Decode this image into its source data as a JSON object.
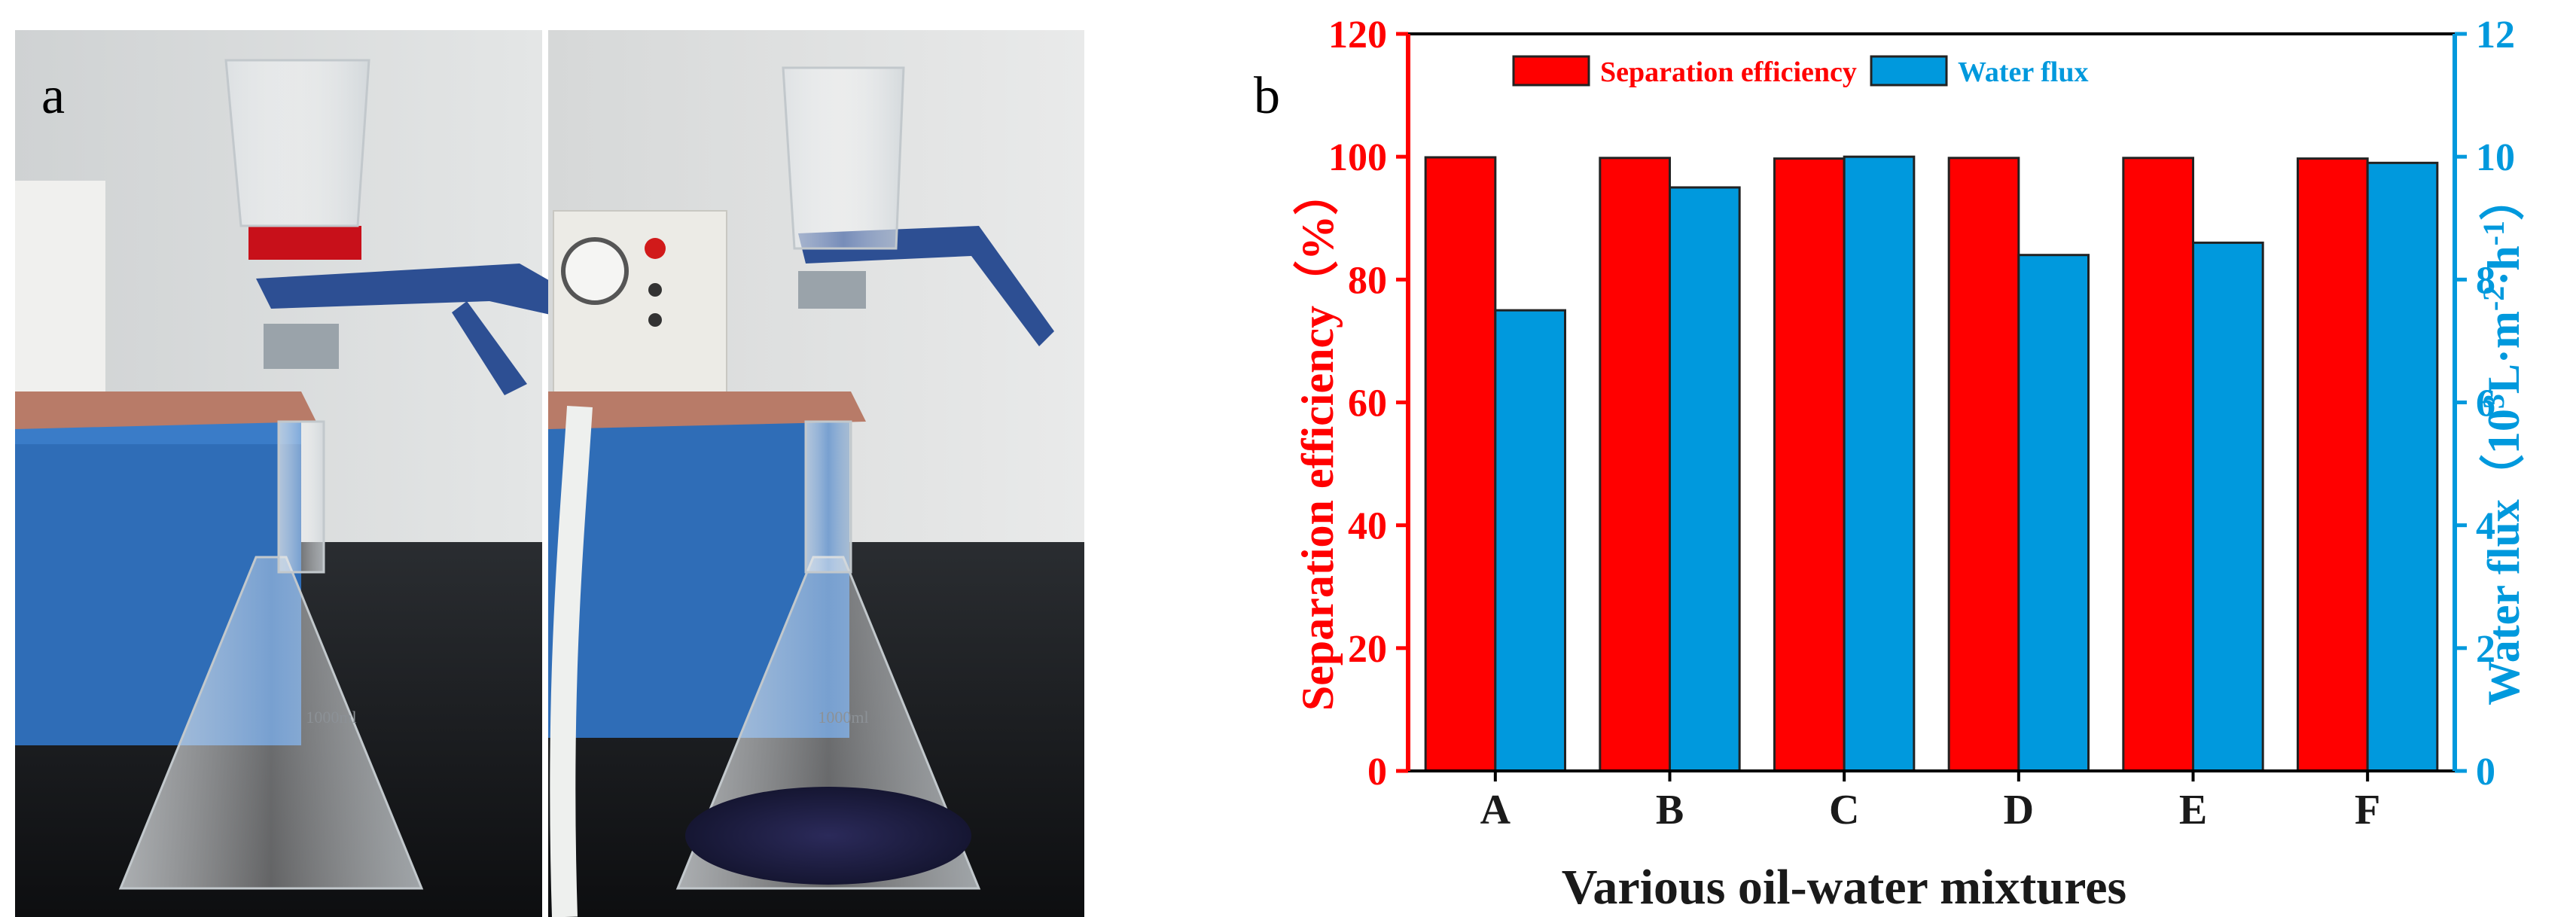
{
  "panels": {
    "a_label": "a",
    "b_label": "b"
  },
  "photo": {
    "flask_marking_left": "1000ml",
    "flask_marking_right": "1000ml"
  },
  "chart_data": {
    "type": "bar",
    "categories": [
      "A",
      "B",
      "C",
      "D",
      "E",
      "F"
    ],
    "series": [
      {
        "name": "Separation efficiency",
        "axis": "left",
        "color": "#ff0000",
        "values": [
          99.9,
          99.8,
          99.7,
          99.8,
          99.8,
          99.7
        ]
      },
      {
        "name": "Water flux",
        "axis": "right",
        "color": "#0099dd",
        "values": [
          7.5,
          9.5,
          10.0,
          8.4,
          8.6,
          9.9
        ]
      }
    ],
    "xlabel": "Various oil-water mixtures",
    "ylabel_left": "Separation efficiency（%）",
    "ylabel_right_main": "Water flux（10",
    "ylabel_right_sup1": "3",
    "ylabel_right_mid1": "L·m",
    "ylabel_right_sup2": "-2",
    "ylabel_right_mid2": "·h",
    "ylabel_right_sup3": "-1",
    "ylabel_right_end": "）",
    "ylim_left": [
      0,
      120
    ],
    "yticks_left": [
      "0",
      "20",
      "40",
      "60",
      "80",
      "100",
      "120"
    ],
    "ylim_right": [
      0,
      12
    ],
    "yticks_right": [
      "0",
      "2",
      "4",
      "6",
      "8",
      "10",
      "12"
    ],
    "legend_position": "top",
    "grid": false,
    "left_axis_color": "#ff0000",
    "right_axis_color": "#0099dd"
  }
}
